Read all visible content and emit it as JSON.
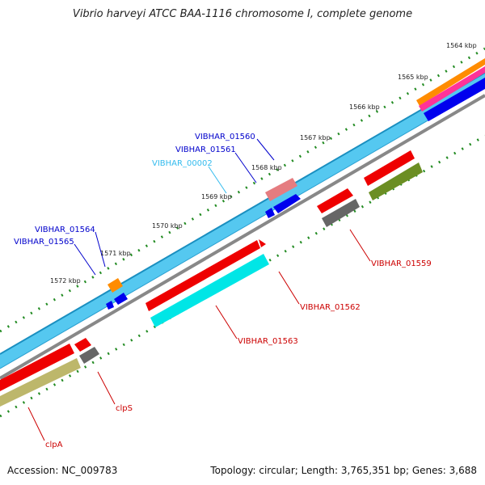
{
  "title": "Vibrio harveyi ATCC BAA-1116 chromosome I, complete genome",
  "footer": {
    "accession": "Accession: NC_009783",
    "summary": "Topology: circular; Length: 3,765,351 bp; Genes: 3,688"
  },
  "ticks": [
    {
      "label": "1564 kbp"
    },
    {
      "label": "1565 kbp"
    },
    {
      "label": "1566 kbp"
    },
    {
      "label": "1567 kbp"
    },
    {
      "label": "1568 kbp"
    },
    {
      "label": "1569 kbp"
    },
    {
      "label": "1570 kbp"
    },
    {
      "label": "1571 kbp"
    },
    {
      "label": "1572 kbp"
    }
  ],
  "gene_labels": [
    {
      "text": "VIBHAR_01560",
      "color": "#0000cc"
    },
    {
      "text": "VIBHAR_01561",
      "color": "#0000cc"
    },
    {
      "text": "VIBHAR_00002",
      "color": "#33bbee"
    },
    {
      "text": "VIBHAR_01564",
      "color": "#0000cc"
    },
    {
      "text": "VIBHAR_01565",
      "color": "#0000cc"
    },
    {
      "text": "VIBHAR_01559",
      "color": "#cc0000"
    },
    {
      "text": "VIBHAR_01562",
      "color": "#cc0000"
    },
    {
      "text": "VIBHAR_01563",
      "color": "#cc0000"
    },
    {
      "text": "clpS",
      "color": "#cc0000"
    },
    {
      "text": "clpA",
      "color": "#cc0000"
    }
  ],
  "colors": {
    "backbone_light": "#55c8f0",
    "backbone_dark": "#1a8fc0",
    "grey_track": "#888888",
    "red": "#ee0000",
    "cyan": "#00e6e6",
    "olive": "#6b8e23",
    "khaki": "#bdb76b",
    "grey_gene": "#666666",
    "blue": "#0000ee",
    "orange": "#ff8c00",
    "magenta": "#ff3399",
    "pink": "#e57c80",
    "tick": "#228b22"
  }
}
